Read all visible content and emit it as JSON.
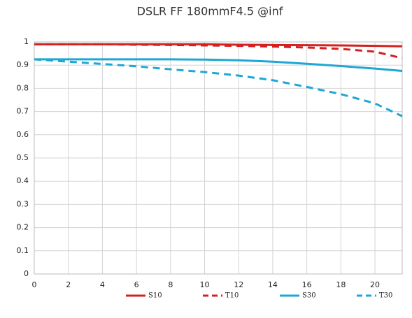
{
  "chart_data": {
    "type": "line",
    "title": "DSLR FF 180mmF4.5 @inf",
    "x": [
      0,
      2,
      4,
      6,
      8,
      10,
      12,
      14,
      16,
      18,
      20,
      21.6
    ],
    "series": [
      {
        "name": "S10",
        "color": "#d42020",
        "dashed": false,
        "values": [
          0.99,
          0.99,
          0.99,
          0.99,
          0.99,
          0.99,
          0.988,
          0.987,
          0.986,
          0.985,
          0.983,
          0.981
        ]
      },
      {
        "name": "T10",
        "color": "#d42020",
        "dashed": true,
        "values": [
          0.99,
          0.99,
          0.99,
          0.988,
          0.987,
          0.985,
          0.983,
          0.98,
          0.976,
          0.97,
          0.958,
          0.93
        ]
      },
      {
        "name": "S30",
        "color": "#1ea7d4",
        "dashed": false,
        "values": [
          0.925,
          0.925,
          0.925,
          0.925,
          0.925,
          0.924,
          0.921,
          0.915,
          0.906,
          0.896,
          0.885,
          0.875
        ]
      },
      {
        "name": "T30",
        "color": "#1ea7d4",
        "dashed": true,
        "values": [
          0.925,
          0.915,
          0.905,
          0.895,
          0.882,
          0.87,
          0.855,
          0.835,
          0.806,
          0.775,
          0.735,
          0.68
        ]
      }
    ],
    "xlim": [
      0,
      21.6
    ],
    "ylim": [
      0,
      1
    ],
    "xticks": [
      0,
      2,
      4,
      6,
      8,
      10,
      12,
      14,
      16,
      18,
      20
    ],
    "yticks": [
      0,
      0.1,
      0.2,
      0.3,
      0.4,
      0.5,
      0.6,
      0.7,
      0.8,
      0.9,
      1
    ],
    "grid": true
  }
}
